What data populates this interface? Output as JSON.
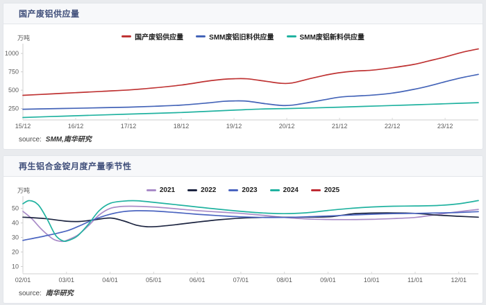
{
  "panels": [
    {
      "title": "国产废铝供应量",
      "unit": "万吨",
      "source_label": "source:",
      "source": "SMM,南华研究"
    },
    {
      "title": "再生铝合金锭月度产量季节性",
      "unit": "万吨",
      "source_label": "source:",
      "source": "南华研究"
    }
  ],
  "chart_data": [
    {
      "type": "line",
      "title": "国产废铝供应量",
      "ylabel": "万吨",
      "legend_position": "top",
      "grid": false,
      "x_ticks": [
        "15/12",
        "16/12",
        "17/12",
        "18/12",
        "19/12",
        "20/12",
        "21/12",
        "22/12",
        "23/12"
      ],
      "x_tick_values": [
        0,
        1,
        2,
        3,
        4,
        5,
        6,
        7,
        8
      ],
      "xlim": [
        0,
        8.63
      ],
      "y_ticks": [
        250,
        500,
        750,
        1000
      ],
      "ylim": [
        95,
        1105
      ],
      "series": [
        {
          "name": "国产废铝供应量",
          "color": "#bf3333",
          "points": [
            [
              0,
              430
            ],
            [
              0.5,
              448
            ],
            [
              1,
              466
            ],
            [
              1.5,
              484
            ],
            [
              2,
              503
            ],
            [
              2.5,
              532
            ],
            [
              3,
              570
            ],
            [
              3.5,
              624
            ],
            [
              3.8,
              648
            ],
            [
              4,
              656
            ],
            [
              4.25,
              655
            ],
            [
              4.6,
              622
            ],
            [
              4.9,
              593
            ],
            [
              5.1,
              598
            ],
            [
              5.4,
              650
            ],
            [
              5.7,
              700
            ],
            [
              6,
              738
            ],
            [
              6.3,
              760
            ],
            [
              6.6,
              772
            ],
            [
              7,
              806
            ],
            [
              7.4,
              850
            ],
            [
              7.7,
              900
            ],
            [
              8,
              952
            ],
            [
              8.3,
              1012
            ],
            [
              8.63,
              1062
            ]
          ]
        },
        {
          "name": "SMM废铝旧料供应量",
          "color": "#4464b8",
          "points": [
            [
              0,
              240
            ],
            [
              0.5,
              247
            ],
            [
              1,
              254
            ],
            [
              1.5,
              261
            ],
            [
              2,
              269
            ],
            [
              2.5,
              281
            ],
            [
              3,
              297
            ],
            [
              3.5,
              326
            ],
            [
              3.8,
              348
            ],
            [
              4,
              354
            ],
            [
              4.25,
              350
            ],
            [
              4.6,
              315
            ],
            [
              4.9,
              292
            ],
            [
              5.1,
              296
            ],
            [
              5.4,
              330
            ],
            [
              5.7,
              368
            ],
            [
              6,
              405
            ],
            [
              6.3,
              420
            ],
            [
              6.6,
              432
            ],
            [
              7,
              460
            ],
            [
              7.4,
              510
            ],
            [
              7.7,
              558
            ],
            [
              8,
              615
            ],
            [
              8.3,
              668
            ],
            [
              8.63,
              715
            ]
          ]
        },
        {
          "name": "SMM废铝新料供应量",
          "color": "#20b2a0",
          "points": [
            [
              0,
              128
            ],
            [
              0.5,
              140
            ],
            [
              1,
              152
            ],
            [
              1.5,
              163
            ],
            [
              2,
              174
            ],
            [
              2.5,
              185
            ],
            [
              3,
              196
            ],
            [
              3.5,
              212
            ],
            [
              4,
              228
            ],
            [
              4.5,
              243
            ],
            [
              5,
              250
            ],
            [
              5.5,
              258
            ],
            [
              6,
              269
            ],
            [
              6.5,
              280
            ],
            [
              7,
              291
            ],
            [
              7.5,
              303
            ],
            [
              8,
              315
            ],
            [
              8.63,
              330
            ]
          ]
        }
      ]
    },
    {
      "type": "line",
      "title": "再生铝合金锭月度产量季节性",
      "ylabel": "万吨",
      "legend_position": "top",
      "grid": false,
      "x_ticks": [
        "02/01",
        "03/01",
        "04/01",
        "05/01",
        "06/01",
        "07/01",
        "08/01",
        "09/01",
        "10/01",
        "11/01",
        "12/01"
      ],
      "x_tick_values": [
        2,
        3,
        4,
        5,
        6,
        7,
        8,
        9,
        10,
        11,
        12
      ],
      "xlim": [
        2,
        12.45
      ],
      "y_ticks": [
        10,
        20,
        30,
        40,
        50
      ],
      "ylim": [
        5,
        57
      ],
      "series": [
        {
          "name": "2021",
          "color": "#a98bc8",
          "points": [
            [
              2,
              48
            ],
            [
              2.2,
              43
            ],
            [
              2.45,
              35
            ],
            [
              2.7,
              28.8
            ],
            [
              2.9,
              27.3
            ],
            [
              3,
              28
            ],
            [
              3.25,
              31.5
            ],
            [
              3.5,
              38
            ],
            [
              3.75,
              45.5
            ],
            [
              4,
              50
            ],
            [
              4.25,
              51.3
            ],
            [
              4.5,
              51.5
            ],
            [
              5,
              51
            ],
            [
              5.5,
              49.8
            ],
            [
              6,
              48.5
            ],
            [
              6.5,
              47.5
            ],
            [
              7,
              46.6
            ],
            [
              7.5,
              45.3
            ],
            [
              8,
              43.8
            ],
            [
              8.5,
              42.8
            ],
            [
              9,
              42.4
            ],
            [
              9.5,
              42.3
            ],
            [
              10,
              42.5
            ],
            [
              10.5,
              43
            ],
            [
              11,
              43.8
            ],
            [
              11.5,
              45.8
            ],
            [
              12,
              47.8
            ],
            [
              12.45,
              49.3
            ]
          ]
        },
        {
          "name": "2022",
          "color": "#1c2440",
          "points": [
            [
              2,
              44
            ],
            [
              2.5,
              43
            ],
            [
              3,
              41.2
            ],
            [
              3.3,
              41
            ],
            [
              3.6,
              42
            ],
            [
              4,
              43.4
            ],
            [
              4.3,
              41.5
            ],
            [
              4.6,
              38.5
            ],
            [
              4.85,
              37.4
            ],
            [
              5.1,
              37.6
            ],
            [
              5.5,
              38.8
            ],
            [
              6,
              40.6
            ],
            [
              6.5,
              42.2
            ],
            [
              7,
              43.3
            ],
            [
              7.5,
              43.8
            ],
            [
              8,
              43.9
            ],
            [
              8.5,
              44
            ],
            [
              9,
              44.2
            ],
            [
              9.3,
              45.2
            ],
            [
              9.6,
              46.4
            ],
            [
              10,
              46.8
            ],
            [
              10.5,
              46.9
            ],
            [
              11,
              46.6
            ],
            [
              11.5,
              45.4
            ],
            [
              12,
              44.6
            ],
            [
              12.45,
              44
            ]
          ]
        },
        {
          "name": "2023",
          "color": "#4a64c0",
          "points": [
            [
              2,
              28
            ],
            [
              2.5,
              31
            ],
            [
              3,
              34.5
            ],
            [
              3.3,
              38
            ],
            [
              3.6,
              42
            ],
            [
              4,
              46
            ],
            [
              4.3,
              47.8
            ],
            [
              4.6,
              48.4
            ],
            [
              5,
              48.2
            ],
            [
              5.5,
              47.2
            ],
            [
              6,
              46
            ],
            [
              6.5,
              45
            ],
            [
              7,
              44.2
            ],
            [
              7.5,
              43.8
            ],
            [
              8,
              43.8
            ],
            [
              8.5,
              44.2
            ],
            [
              9,
              44.8
            ],
            [
              9.5,
              45.4
            ],
            [
              10,
              46
            ],
            [
              10.5,
              46.4
            ],
            [
              11,
              46.6
            ],
            [
              11.5,
              46.9
            ],
            [
              12,
              47.2
            ],
            [
              12.45,
              47.8
            ]
          ]
        },
        {
          "name": "2024",
          "color": "#20b2a0",
          "points": [
            [
              2,
              53.2
            ],
            [
              2.15,
              55.4
            ],
            [
              2.35,
              52.5
            ],
            [
              2.55,
              43
            ],
            [
              2.75,
              31.5
            ],
            [
              2.92,
              27.6
            ],
            [
              3.05,
              28
            ],
            [
              3.25,
              31
            ],
            [
              3.5,
              39
            ],
            [
              3.75,
              48.5
            ],
            [
              4,
              53.5
            ],
            [
              4.3,
              55
            ],
            [
              4.6,
              55.3
            ],
            [
              5,
              54.2
            ],
            [
              5.5,
              52.6
            ],
            [
              6,
              51
            ],
            [
              6.5,
              49.4
            ],
            [
              7,
              48
            ],
            [
              7.5,
              46.9
            ],
            [
              8,
              46.4
            ],
            [
              8.5,
              47
            ],
            [
              9,
              48.6
            ],
            [
              9.5,
              50
            ],
            [
              10,
              51
            ],
            [
              10.5,
              51.5
            ],
            [
              11,
              51.7
            ],
            [
              11.5,
              52
            ],
            [
              12,
              53.2
            ],
            [
              12.45,
              55.4
            ]
          ]
        },
        {
          "name": "2025",
          "color": "#bf2b33",
          "points": []
        }
      ]
    }
  ]
}
